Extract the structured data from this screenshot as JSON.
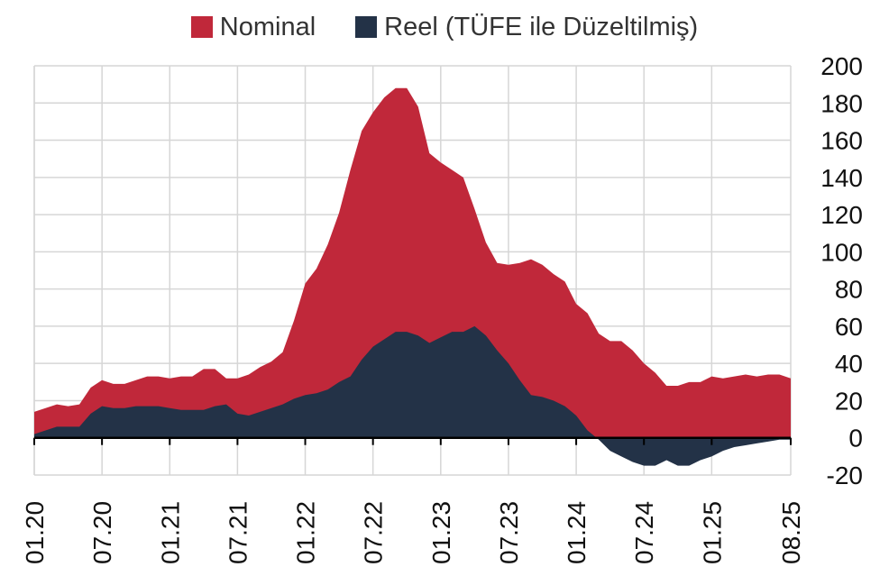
{
  "chart_data": {
    "type": "area",
    "title": "",
    "xlabel": "",
    "ylabel": "",
    "ylim": [
      -20,
      200
    ],
    "y_ticks": [
      -20,
      0,
      20,
      40,
      60,
      80,
      100,
      120,
      140,
      160,
      180,
      200
    ],
    "y_axis_position": "right",
    "grid": true,
    "legend_position": "top-center",
    "x_tick_labels": [
      "01.20",
      "07.20",
      "01.21",
      "07.21",
      "01.22",
      "07.22",
      "01.23",
      "07.23",
      "01.24",
      "07.24",
      "01.25",
      "08.25"
    ],
    "x": [
      "2020-01",
      "2020-02",
      "2020-03",
      "2020-04",
      "2020-05",
      "2020-06",
      "2020-07",
      "2020-08",
      "2020-09",
      "2020-10",
      "2020-11",
      "2020-12",
      "2021-01",
      "2021-02",
      "2021-03",
      "2021-04",
      "2021-05",
      "2021-06",
      "2021-07",
      "2021-08",
      "2021-09",
      "2021-10",
      "2021-11",
      "2021-12",
      "2022-01",
      "2022-02",
      "2022-03",
      "2022-04",
      "2022-05",
      "2022-06",
      "2022-07",
      "2022-08",
      "2022-09",
      "2022-10",
      "2022-11",
      "2022-12",
      "2023-01",
      "2023-02",
      "2023-03",
      "2023-04",
      "2023-05",
      "2023-06",
      "2023-07",
      "2023-08",
      "2023-09",
      "2023-10",
      "2023-11",
      "2023-12",
      "2024-01",
      "2024-02",
      "2024-03",
      "2024-04",
      "2024-05",
      "2024-06",
      "2024-07",
      "2024-08",
      "2024-09",
      "2024-10",
      "2024-11",
      "2024-12",
      "2025-01",
      "2025-02",
      "2025-03",
      "2025-04",
      "2025-05",
      "2025-06",
      "2025-07",
      "2025-08"
    ],
    "series": [
      {
        "name": "Nominal",
        "color": "#c0283a",
        "values": [
          14,
          16,
          18,
          17,
          18,
          27,
          31,
          29,
          29,
          31,
          33,
          33,
          32,
          33,
          33,
          37,
          37,
          32,
          32,
          34,
          38,
          41,
          46,
          63,
          83,
          91,
          104,
          121,
          144,
          165,
          175,
          183,
          188,
          188,
          178,
          153,
          148,
          144,
          140,
          123,
          105,
          94,
          93,
          94,
          96,
          93,
          88,
          84,
          72,
          67,
          56,
          52,
          52,
          47,
          40,
          35,
          28,
          28,
          30,
          30,
          33,
          32,
          33,
          34,
          33,
          34,
          34,
          32
        ]
      },
      {
        "name": "Reel (TÜFE ile Düzeltilmiş)",
        "color": "#233247",
        "values": [
          2,
          4,
          6,
          6,
          6,
          13,
          17,
          16,
          16,
          17,
          17,
          17,
          16,
          15,
          15,
          15,
          17,
          18,
          13,
          12,
          14,
          16,
          18,
          21,
          23,
          24,
          26,
          30,
          33,
          42,
          49,
          53,
          57,
          57,
          55,
          51,
          54,
          57,
          57,
          60,
          55,
          47,
          40,
          31,
          23,
          22,
          20,
          17,
          12,
          4,
          -1,
          -7,
          -10,
          -13,
          -15,
          -15,
          -12,
          -15,
          -15,
          -12,
          -10,
          -7,
          -5,
          -4,
          -3,
          -2,
          -1,
          -1
        ]
      }
    ]
  }
}
